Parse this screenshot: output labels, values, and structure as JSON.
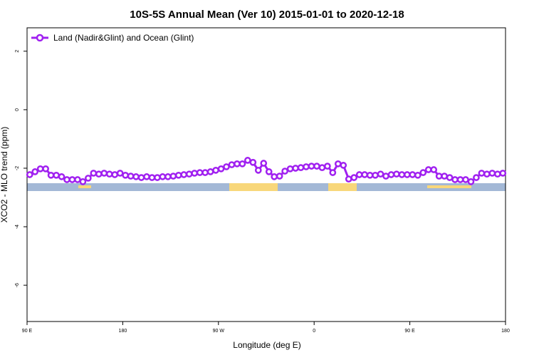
{
  "chart_data": {
    "type": "line",
    "title": "10S-5S Annual Mean (Ver 10)   2015-01-01 to 2020-12-18",
    "x_label": "Longitude (deg E)",
    "y_label": "XCO2 - MLO trend (ppm)",
    "x": [
      92.5,
      97.5,
      102.5,
      107.5,
      112.5,
      117.5,
      122.5,
      127.5,
      132.5,
      137.5,
      142.5,
      147.5,
      152.5,
      157.5,
      162.5,
      167.5,
      172.5,
      177.5,
      182.5,
      187.5,
      192.5,
      197.5,
      202.5,
      207.5,
      212.5,
      217.5,
      222.5,
      227.5,
      232.5,
      237.5,
      242.5,
      247.5,
      252.5,
      257.5,
      262.5,
      267.5,
      272.5,
      277.5,
      282.5,
      287.5,
      292.5,
      297.5,
      302.5,
      307.5,
      312.5,
      317.5,
      322.5,
      327.5,
      332.5,
      337.5,
      342.5,
      347.5,
      352.5,
      357.5,
      362.5,
      367.5,
      372.5,
      377.5,
      382.5,
      387.5,
      392.5,
      397.5,
      402.5,
      407.5,
      412.5,
      417.5,
      422.5,
      427.5,
      432.5,
      437.5,
      442.5,
      447.5,
      452.5,
      457.5,
      462.5,
      467.5,
      472.5,
      477.5,
      482.5,
      487.5,
      492.5,
      497.5,
      502.5,
      507.5,
      512.5,
      517.5,
      522.5,
      527.5,
      532.5,
      537.5
    ],
    "series": [
      {
        "name": "Land (Nadir&Glint) and Ocean (Glint)",
        "color": "#a020f0",
        "values": [
          -2.22,
          -2.12,
          -2.02,
          -2.02,
          -2.24,
          -2.24,
          -2.29,
          -2.39,
          -2.39,
          -2.39,
          -2.46,
          -2.34,
          -2.17,
          -2.2,
          -2.17,
          -2.2,
          -2.22,
          -2.17,
          -2.24,
          -2.27,
          -2.29,
          -2.32,
          -2.29,
          -2.32,
          -2.32,
          -2.29,
          -2.29,
          -2.27,
          -2.24,
          -2.22,
          -2.2,
          -2.17,
          -2.15,
          -2.15,
          -2.12,
          -2.07,
          -2.02,
          -1.95,
          -1.88,
          -1.85,
          -1.85,
          -1.73,
          -1.8,
          -2.07,
          -1.83,
          -2.12,
          -2.29,
          -2.27,
          -2.1,
          -2.02,
          -2.0,
          -1.98,
          -1.95,
          -1.93,
          -1.93,
          -1.98,
          -1.93,
          -2.15,
          -1.85,
          -1.9,
          -2.37,
          -2.32,
          -2.22,
          -2.22,
          -2.24,
          -2.24,
          -2.2,
          -2.27,
          -2.22,
          -2.2,
          -2.22,
          -2.22,
          -2.22,
          -2.24,
          -2.15,
          -2.05,
          -2.05,
          -2.27,
          -2.27,
          -2.32,
          -2.39,
          -2.39,
          -2.39,
          -2.46,
          -2.32,
          -2.17,
          -2.2,
          -2.17,
          -2.2,
          -2.17
        ]
      }
    ],
    "xlim": [
      90,
      540
    ],
    "xticks": [
      {
        "value": 90,
        "label": "90 E"
      },
      180,
      {
        "value": 270,
        "label": "90 W"
      },
      {
        "value": 360,
        "label": "0"
      },
      {
        "value": 450,
        "label": "90 E"
      },
      {
        "value": 540,
        "label": "180"
      }
    ],
    "ylim": [
      -7.24,
      2.8
    ],
    "yticks": [
      2,
      0,
      -2,
      -4,
      -6
    ],
    "legend": "top-left"
  }
}
